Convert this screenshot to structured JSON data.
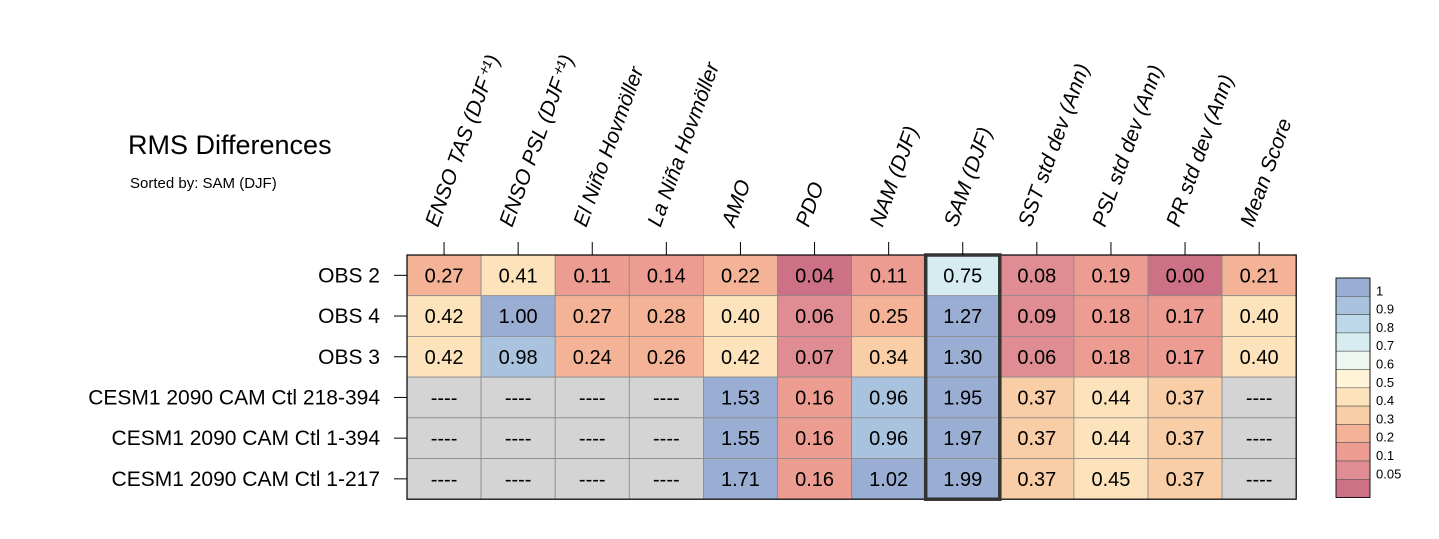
{
  "chart_data": {
    "type": "heatmap",
    "title": "RMS Differences",
    "subtitle": "Sorted by: SAM (DJF)",
    "columns": [
      "ENSO TAS (DJF⁺¹)",
      "ENSO PSL (DJF⁺¹)",
      "El Niño Hovmöller",
      "La Niña Hovmöller",
      "AMO",
      "PDO",
      "NAM (DJF)",
      "SAM (DJF)",
      "SST std dev (Ann)",
      "PSL std dev (Ann)",
      "PR std dev (Ann)",
      "Mean Score"
    ],
    "rows": [
      "OBS 2",
      "OBS 4",
      "OBS 3",
      "CESM1 2090 CAM Ctl 218-394",
      "CESM1 2090 CAM Ctl 1-394",
      "CESM1 2090 CAM Ctl 1-217"
    ],
    "values": [
      [
        "0.27",
        "0.41",
        "0.11",
        "0.14",
        "0.22",
        "0.04",
        "0.11",
        "0.75",
        "0.08",
        "0.19",
        "0.00",
        "0.21"
      ],
      [
        "0.42",
        "1.00",
        "0.27",
        "0.28",
        "0.40",
        "0.06",
        "0.25",
        "1.27",
        "0.09",
        "0.18",
        "0.17",
        "0.40"
      ],
      [
        "0.42",
        "0.98",
        "0.24",
        "0.26",
        "0.42",
        "0.07",
        "0.34",
        "1.30",
        "0.06",
        "0.18",
        "0.17",
        "0.40"
      ],
      [
        "----",
        "----",
        "----",
        "----",
        "1.53",
        "0.16",
        "0.96",
        "1.95",
        "0.37",
        "0.44",
        "0.37",
        "----"
      ],
      [
        "----",
        "----",
        "----",
        "----",
        "1.55",
        "0.16",
        "0.96",
        "1.97",
        "0.37",
        "0.44",
        "0.37",
        "----"
      ],
      [
        "----",
        "----",
        "----",
        "----",
        "1.71",
        "0.16",
        "1.02",
        "1.99",
        "0.37",
        "0.45",
        "0.37",
        "----"
      ]
    ],
    "highlighted_column": "SAM (DJF)",
    "missing_value_color": "#d4d4d4",
    "colorbar": {
      "labels": [
        "1",
        "0.9",
        "0.8",
        "0.7",
        "0.6",
        "0.5",
        "0.4",
        "0.3",
        "0.2",
        "0.1",
        "0.05"
      ],
      "colors_top_to_bottom": [
        "#9aadd2",
        "#a9c3df",
        "#bdd8e8",
        "#d6ecf1",
        "#eef7ef",
        "#fff4d8",
        "#fde3bb",
        "#f9cda5",
        "#f4b396",
        "#ec9c91",
        "#df8d92",
        "#cc7186"
      ]
    }
  }
}
